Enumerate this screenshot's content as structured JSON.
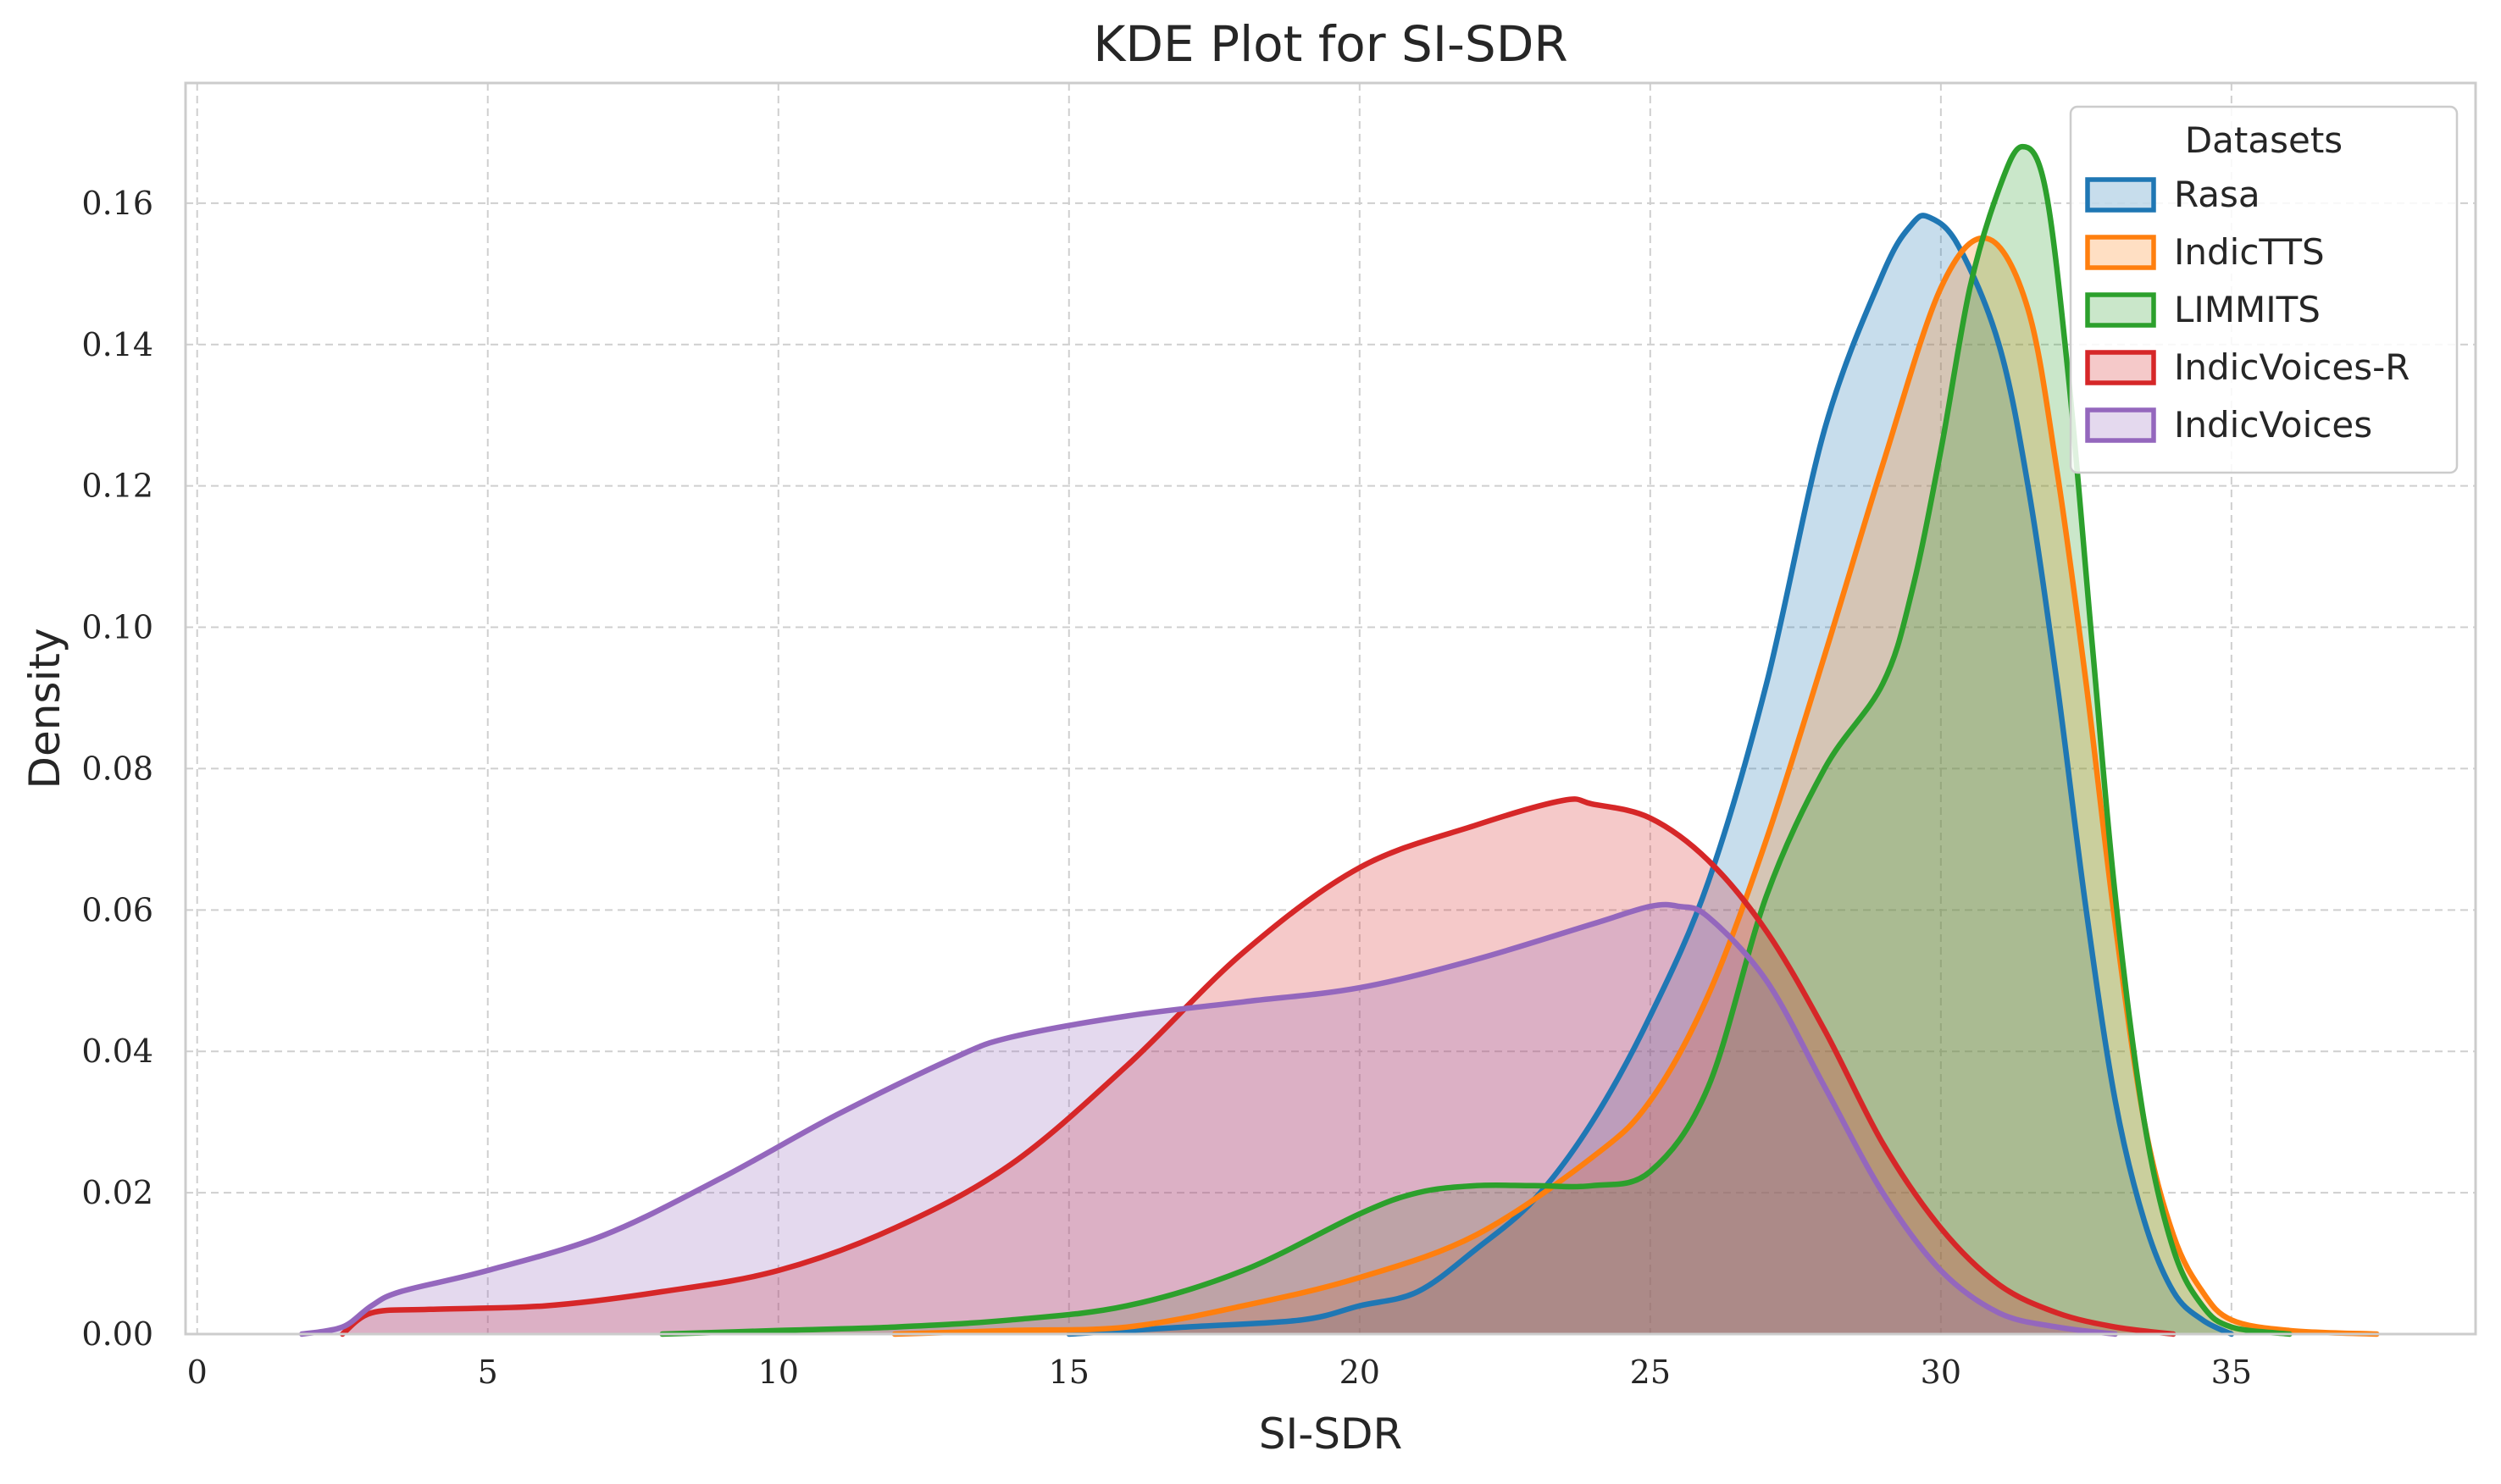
{
  "chart_data": {
    "type": "area",
    "title": "KDE Plot for SI-SDR",
    "xlabel": "SI-SDR",
    "ylabel": "Density",
    "xlim": [
      -0.2,
      39.2
    ],
    "ylim": [
      0,
      0.177
    ],
    "xticks": [
      0,
      5,
      10,
      15,
      20,
      25,
      30,
      35
    ],
    "xtick_labels": [
      "0",
      "5",
      "10",
      "15",
      "20",
      "25",
      "30",
      "35"
    ],
    "yticks": [
      0,
      0.02,
      0.04,
      0.06,
      0.08,
      0.1,
      0.12,
      0.14,
      0.16
    ],
    "ytick_labels": [
      "0.00",
      "0.02",
      "0.04",
      "0.06",
      "0.08",
      "0.10",
      "0.12",
      "0.14",
      "0.16"
    ],
    "grid": true,
    "legend": {
      "title": "Datasets",
      "placement": "top-right"
    },
    "series": [
      {
        "name": "Rasa",
        "color": "#1f77b4",
        "points": [
          [
            15,
            0.0
          ],
          [
            17,
            0.001
          ],
          [
            19,
            0.002
          ],
          [
            20,
            0.004
          ],
          [
            21,
            0.006
          ],
          [
            22,
            0.012
          ],
          [
            23,
            0.019
          ],
          [
            24,
            0.03
          ],
          [
            25,
            0.045
          ],
          [
            26,
            0.064
          ],
          [
            27,
            0.092
          ],
          [
            28,
            0.128
          ],
          [
            29,
            0.15
          ],
          [
            29.5,
            0.157
          ],
          [
            29.8,
            0.158
          ],
          [
            30.3,
            0.154
          ],
          [
            31,
            0.14
          ],
          [
            31.5,
            0.12
          ],
          [
            32,
            0.092
          ],
          [
            32.5,
            0.06
          ],
          [
            33,
            0.033
          ],
          [
            33.5,
            0.016
          ],
          [
            34,
            0.006
          ],
          [
            34.5,
            0.002
          ],
          [
            35,
            0.0
          ]
        ]
      },
      {
        "name": "IndicTTS",
        "color": "#ff7f0e",
        "points": [
          [
            12,
            0.0
          ],
          [
            14,
            0.0005
          ],
          [
            16,
            0.001
          ],
          [
            18,
            0.004
          ],
          [
            20,
            0.008
          ],
          [
            22,
            0.014
          ],
          [
            24,
            0.025
          ],
          [
            25,
            0.033
          ],
          [
            26,
            0.048
          ],
          [
            27,
            0.07
          ],
          [
            28,
            0.096
          ],
          [
            29,
            0.123
          ],
          [
            30,
            0.148
          ],
          [
            30.8,
            0.155
          ],
          [
            31.5,
            0.145
          ],
          [
            32,
            0.122
          ],
          [
            32.5,
            0.092
          ],
          [
            33,
            0.058
          ],
          [
            33.5,
            0.03
          ],
          [
            34,
            0.014
          ],
          [
            34.5,
            0.006
          ],
          [
            35,
            0.002
          ],
          [
            36,
            0.0005
          ],
          [
            37.5,
            0.0
          ]
        ]
      },
      {
        "name": "LIMMITS",
        "color": "#2ca02c",
        "points": [
          [
            8,
            0.0
          ],
          [
            10,
            0.0005
          ],
          [
            12,
            0.001
          ],
          [
            14,
            0.002
          ],
          [
            16,
            0.004
          ],
          [
            18,
            0.009
          ],
          [
            20,
            0.017
          ],
          [
            21,
            0.02
          ],
          [
            22,
            0.021
          ],
          [
            23,
            0.021
          ],
          [
            24,
            0.021
          ],
          [
            25,
            0.023
          ],
          [
            26,
            0.035
          ],
          [
            27,
            0.062
          ],
          [
            28,
            0.08
          ],
          [
            29,
            0.092
          ],
          [
            29.5,
            0.105
          ],
          [
            30,
            0.125
          ],
          [
            30.5,
            0.148
          ],
          [
            31,
            0.162
          ],
          [
            31.4,
            0.168
          ],
          [
            31.8,
            0.162
          ],
          [
            32.2,
            0.135
          ],
          [
            32.6,
            0.098
          ],
          [
            33,
            0.062
          ],
          [
            33.5,
            0.03
          ],
          [
            34,
            0.012
          ],
          [
            34.5,
            0.004
          ],
          [
            35,
            0.001
          ],
          [
            36,
            0.0
          ]
        ]
      },
      {
        "name": "IndicVoices-R",
        "color": "#d62728",
        "points": [
          [
            2.5,
            0.0
          ],
          [
            3,
            0.003
          ],
          [
            4,
            0.0035
          ],
          [
            6,
            0.004
          ],
          [
            8,
            0.006
          ],
          [
            10,
            0.009
          ],
          [
            12,
            0.015
          ],
          [
            14,
            0.024
          ],
          [
            16,
            0.038
          ],
          [
            18,
            0.054
          ],
          [
            20,
            0.066
          ],
          [
            22,
            0.072
          ],
          [
            23.5,
            0.0755
          ],
          [
            24,
            0.075
          ],
          [
            25,
            0.073
          ],
          [
            26,
            0.067
          ],
          [
            27,
            0.057
          ],
          [
            28,
            0.043
          ],
          [
            29,
            0.027
          ],
          [
            30,
            0.015
          ],
          [
            31,
            0.007
          ],
          [
            32,
            0.003
          ],
          [
            33,
            0.001
          ],
          [
            34,
            0.0
          ]
        ]
      },
      {
        "name": "IndicVoices",
        "color": "#9467bd",
        "points": [
          [
            1.8,
            0.0
          ],
          [
            2.5,
            0.001
          ],
          [
            3,
            0.004
          ],
          [
            3.5,
            0.006
          ],
          [
            5,
            0.009
          ],
          [
            7,
            0.014
          ],
          [
            9,
            0.022
          ],
          [
            11,
            0.031
          ],
          [
            13,
            0.039
          ],
          [
            14,
            0.042
          ],
          [
            16,
            0.045
          ],
          [
            18,
            0.047
          ],
          [
            20,
            0.049
          ],
          [
            22,
            0.053
          ],
          [
            24,
            0.058
          ],
          [
            25,
            0.0605
          ],
          [
            25.5,
            0.0605
          ],
          [
            26,
            0.059
          ],
          [
            27,
            0.05
          ],
          [
            28,
            0.035
          ],
          [
            29,
            0.02
          ],
          [
            30,
            0.009
          ],
          [
            31,
            0.003
          ],
          [
            32,
            0.001
          ],
          [
            33,
            0.0
          ]
        ]
      }
    ]
  }
}
